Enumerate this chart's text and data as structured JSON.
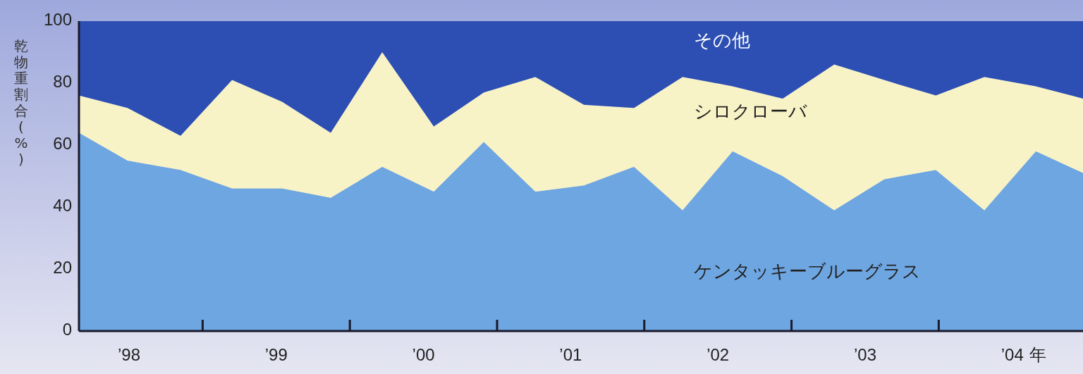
{
  "chart_data": {
    "type": "area",
    "stacked": true,
    "ylabel": "乾物重割合(%)",
    "x": [
      1997.66,
      1997.99,
      1998.35,
      1998.7,
      1999.04,
      1999.37,
      1999.72,
      2000.07,
      2000.41,
      2000.76,
      2001.09,
      2001.43,
      2001.76,
      2002.1,
      2002.44,
      2002.79,
      2003.13,
      2003.48,
      2003.81,
      2004.16,
      2004.48
    ],
    "xlim": [
      1997.66,
      2004.48
    ],
    "xticks": [
      {
        "value": 1998,
        "label": "’98"
      },
      {
        "value": 1998.5,
        "label": null
      },
      {
        "value": 1999,
        "label": "’99"
      },
      {
        "value": 1999.5,
        "label": null
      },
      {
        "value": 2000,
        "label": "’00"
      },
      {
        "value": 2000.5,
        "label": null
      },
      {
        "value": 2001,
        "label": "’01"
      },
      {
        "value": 2001.5,
        "label": null
      },
      {
        "value": 2002,
        "label": "’02"
      },
      {
        "value": 2002.5,
        "label": null
      },
      {
        "value": 2003,
        "label": "’03"
      },
      {
        "value": 2003.5,
        "label": null
      },
      {
        "value": 2004,
        "label": "’04"
      }
    ],
    "xlabel": "年",
    "ylim": [
      0,
      100
    ],
    "yticks": [
      0,
      20,
      40,
      60,
      80,
      100
    ],
    "grid": false,
    "series": [
      {
        "name": "ケンタッキーブルーグラス",
        "color": "#6ea6e2",
        "values": [
          64,
          55,
          52,
          46,
          46,
          43,
          53,
          45,
          61,
          45,
          47,
          53,
          39,
          58,
          50,
          39,
          49,
          52,
          39,
          58,
          51
        ]
      },
      {
        "name": "シロクローバ",
        "color": "#f8f3c6",
        "values": [
          12,
          17,
          11,
          35,
          28,
          21,
          37,
          21,
          16,
          37,
          26,
          19,
          43,
          21,
          25,
          47,
          32,
          24,
          43,
          21,
          24
        ]
      },
      {
        "name": "その他",
        "color": "#2d4fb3",
        "values": [
          24,
          28,
          37,
          19,
          26,
          36,
          10,
          34,
          23,
          18,
          27,
          28,
          18,
          21,
          25,
          14,
          19,
          24,
          18,
          21,
          25
        ]
      }
    ]
  }
}
